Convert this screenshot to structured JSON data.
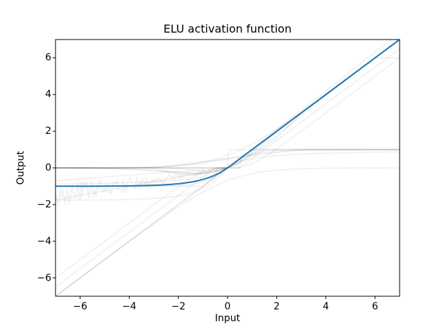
{
  "figure": {
    "title": "ELU activation function",
    "xlabel": "Input",
    "ylabel": "Output",
    "background_color": "#ffffff",
    "accent_color": "#1f77b4"
  },
  "chart_data": {
    "type": "line",
    "title": "ELU activation function",
    "xlabel": "Input",
    "ylabel": "Output",
    "xlim": [
      -7,
      7
    ],
    "ylim": [
      -7,
      7
    ],
    "xticks": [
      -6,
      -4,
      -2,
      0,
      2,
      4,
      6
    ],
    "xtick_labels": [
      "−6",
      "−4",
      "−2",
      "0",
      "2",
      "4",
      "6"
    ],
    "yticks": [
      -6,
      -4,
      -2,
      0,
      2,
      4,
      6
    ],
    "ytick_labels": [
      "−6",
      "−4",
      "−2",
      "0",
      "2",
      "4",
      "6"
    ],
    "grid": false,
    "legend": null,
    "style": {
      "spine_color": "#000000",
      "faint_stroke": "#000000",
      "faint_opacity": 0.055,
      "faint_width": 1.8,
      "noise_seed": 42
    },
    "series": [
      {
        "name": "ELU",
        "color": "#1f77b4",
        "width": 2,
        "x": [
          -7,
          -6.5,
          -6,
          -5.5,
          -5,
          -4.5,
          -4,
          -3.5,
          -3,
          -2.75,
          -2.5,
          -2.25,
          -2,
          -1.75,
          -1.5,
          -1.25,
          -1,
          -0.75,
          -0.5,
          -0.25,
          0,
          0.5,
          1,
          1.5,
          2,
          3,
          4,
          5,
          6,
          7
        ],
        "y": [
          -0.9991,
          -0.9985,
          -0.9975,
          -0.9959,
          -0.9933,
          -0.9889,
          -0.9817,
          -0.9698,
          -0.9502,
          -0.9361,
          -0.9179,
          -0.8946,
          -0.8647,
          -0.8262,
          -0.7769,
          -0.7135,
          -0.6321,
          -0.5276,
          -0.3935,
          -0.2212,
          0,
          0.5,
          1,
          1.5,
          2,
          3,
          4,
          5,
          6,
          7
        ]
      }
    ],
    "background_series": [
      {
        "fn": "identity"
      },
      {
        "fn": "relu"
      },
      {
        "fn": "relu6"
      },
      {
        "fn": "leaky_relu",
        "slope": 0.1
      },
      {
        "fn": "prelu",
        "slope": 0.25
      },
      {
        "fn": "rrelu",
        "lo": 0.125,
        "hi": 0.3333
      },
      {
        "fn": "selu"
      },
      {
        "fn": "celu"
      },
      {
        "fn": "gelu"
      },
      {
        "fn": "sigmoid"
      },
      {
        "fn": "silu"
      },
      {
        "fn": "mish"
      },
      {
        "fn": "softplus"
      },
      {
        "fn": "softshrink"
      },
      {
        "fn": "hardshrink"
      },
      {
        "fn": "tanh"
      },
      {
        "fn": "softsign"
      },
      {
        "fn": "tanhshrink"
      },
      {
        "fn": "hardtanh"
      },
      {
        "fn": "hardsigmoid"
      },
      {
        "fn": "hardswish"
      },
      {
        "fn": "logsigmoid"
      },
      {
        "fn": "step"
      }
    ]
  }
}
